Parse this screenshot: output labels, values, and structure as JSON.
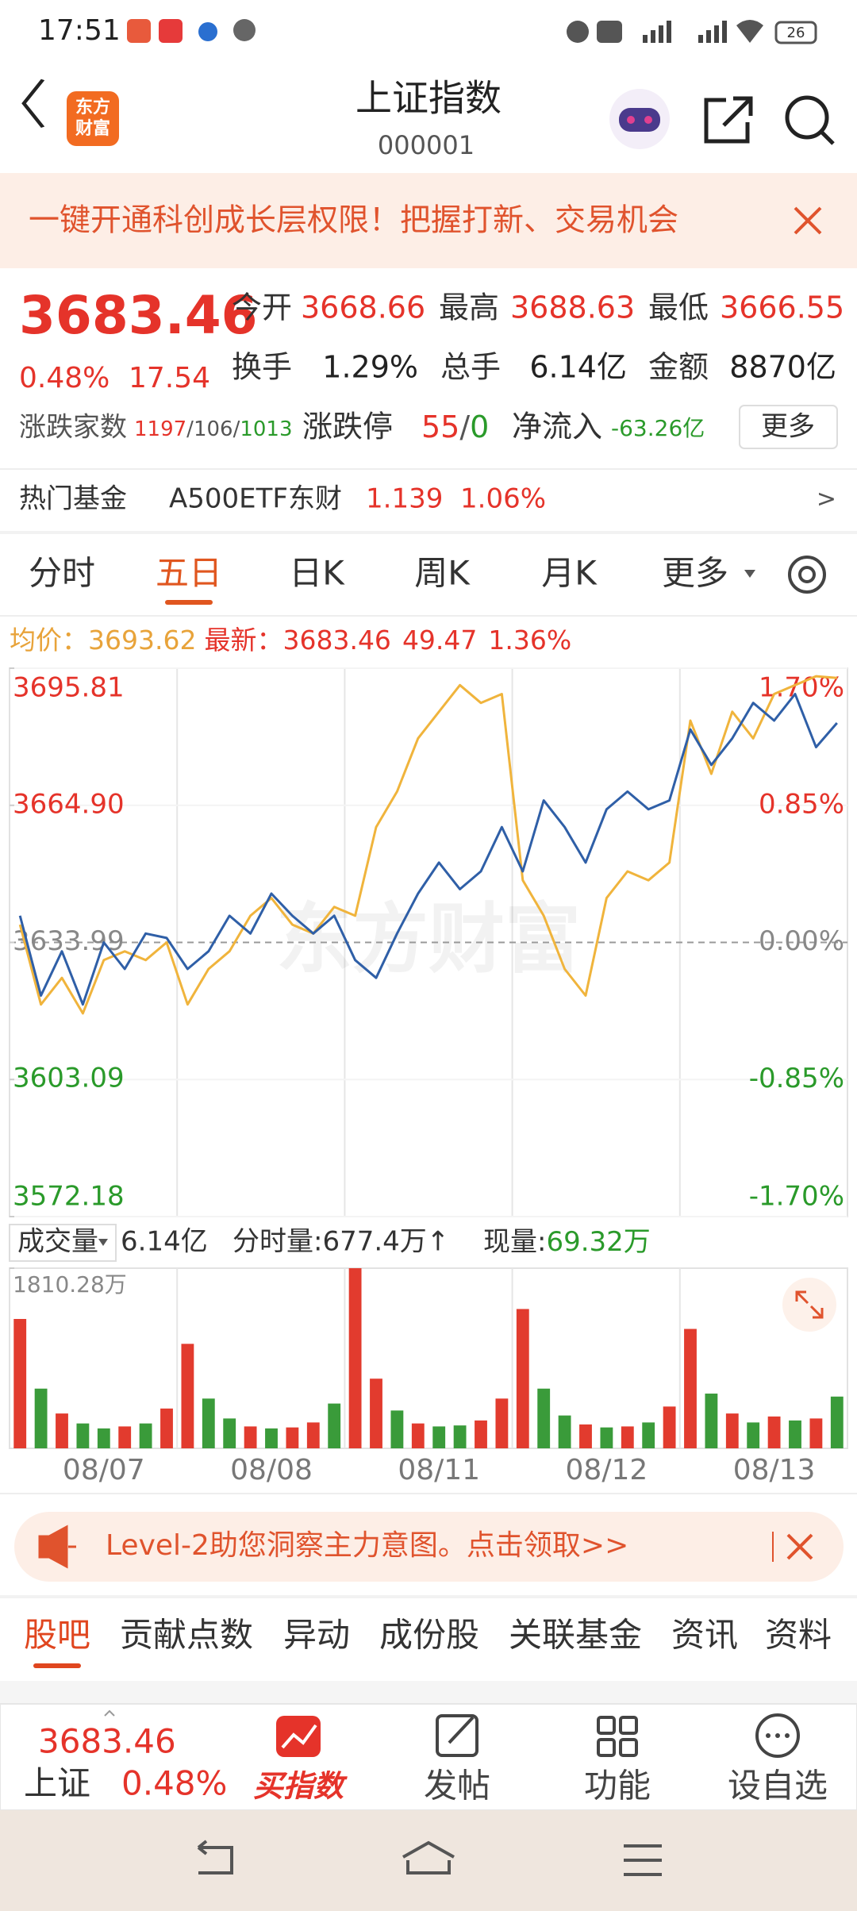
{
  "status_bar": {
    "time": "17:51",
    "battery": "26"
  },
  "header": {
    "logo": [
      "东方",
      "财富"
    ],
    "title": "上证指数",
    "code": "000001"
  },
  "banner": {
    "text": "一键开通科创成长层权限！把握打新、交易机会"
  },
  "quote": {
    "price": "3683.46",
    "change_pct": "0.48%",
    "change": "17.54",
    "fields": [
      {
        "label": "今开",
        "value": "3668.66"
      },
      {
        "label": "最高",
        "value": "3688.63"
      },
      {
        "label": "最低",
        "value": "3666.55"
      },
      {
        "label": "换手",
        "value": "1.29%"
      },
      {
        "label": "总手",
        "value": "6.14亿"
      },
      {
        "label": "金额",
        "value": "8870亿"
      }
    ],
    "breadth": {
      "label": "涨跌家数",
      "up": "1197",
      "flat": "106",
      "down": "1013",
      "separator": "/"
    },
    "limit": {
      "label": "涨跌停",
      "up": "55",
      "down": "0",
      "separator": "/"
    },
    "net_inflow": {
      "label": "净流入",
      "value": "-63.26亿"
    },
    "more_button": "更多"
  },
  "hot_fund": {
    "label": "热门基金",
    "name": "A500ETF东财",
    "price": "1.139",
    "change_pct": "1.06%",
    "arrow": ">"
  },
  "tabs": {
    "items": [
      "分时",
      "五日",
      "日K",
      "周K",
      "月K",
      "更多"
    ],
    "active": 1
  },
  "chart_data": [
    {
      "type": "line",
      "categories": [
        null,
        null,
        null,
        null,
        null,
        null,
        null,
        null,
        null,
        null,
        null,
        null,
        null,
        null,
        null,
        null,
        null,
        null,
        null,
        null,
        null,
        null,
        null,
        null,
        null,
        null,
        null,
        null,
        null,
        null,
        null,
        null,
        null,
        null,
        null,
        null,
        null,
        null,
        null,
        null
      ],
      "series": [
        {
          "name": "均价：",
          "color": "#f0b43c",
          "values": [
            3638,
            3620,
            3626,
            3618,
            3630,
            3632,
            3630,
            3634,
            3620,
            3628,
            3632,
            3640,
            3644,
            3638,
            3636,
            3642,
            3640,
            3660,
            3668,
            3680,
            3686,
            3692,
            3688,
            3690,
            3648,
            3640,
            3628,
            3622,
            3644,
            3650,
            3648,
            3652,
            3684,
            3672,
            3686,
            3680,
            3690,
            3692,
            3694,
            3693.62
          ]
        },
        {
          "name": "最新：",
          "color": "#2f5fa7",
          "values": [
            3640,
            3622,
            3632,
            3620,
            3634,
            3628,
            3636,
            3635,
            3628,
            3632,
            3640,
            3636,
            3645,
            3640,
            3636,
            3640,
            3630,
            3626,
            3636,
            3645,
            3652,
            3646,
            3650,
            3660,
            3650,
            3666,
            3660,
            3652,
            3664,
            3668,
            3664,
            3666,
            3682,
            3674,
            3680,
            3688,
            3684,
            3690,
            3678,
            3683.46
          ]
        }
      ],
      "legend": {
        "avg": 3693.62,
        "latest": 3683.46,
        "change": 49.47,
        "change_pct": "1.36%"
      },
      "ylim": [
        3572.18,
        3695.81
      ],
      "yticks": [
        3695.81,
        {
          "value": 3664.9,
          "label": "3664.90"
        },
        3633.99,
        3603.09,
        3572.18
      ],
      "y2lim": [
        -1.7,
        1.7
      ],
      "y2ticks": [
        {
          "value": 1.7,
          "label": "1.70%"
        },
        {
          "value": 0.85,
          "label": "0.85%"
        },
        {
          "value": 0,
          "label": "0.00%"
        },
        {
          "value": -0.85,
          "label": "-0.85%"
        },
        {
          "value": -1.7,
          "label": "-1.70%"
        }
      ],
      "watermark": "东方财富"
    },
    {
      "type": "bar",
      "categories": [
        null,
        null,
        null,
        null,
        "08/07",
        null,
        null,
        null,
        null,
        null,
        null,
        null,
        "08/08",
        null,
        null,
        null,
        null,
        null,
        null,
        null,
        "08/11",
        null,
        null,
        null,
        null,
        null,
        null,
        null,
        "08/12",
        null,
        null,
        null,
        null,
        null,
        null,
        null,
        "08/13",
        null,
        null,
        null
      ],
      "values": [
        1300,
        600,
        350,
        250,
        200,
        220,
        250,
        400,
        1050,
        500,
        300,
        220,
        200,
        210,
        260,
        450,
        1810,
        700,
        380,
        250,
        220,
        230,
        280,
        500,
        1400,
        600,
        330,
        240,
        210,
        220,
        260,
        420,
        1200,
        550,
        350,
        260,
        320,
        280,
        300,
        520
      ],
      "colors": [
        "#e23b2e",
        "#3a9b3a",
        "#e23b2e",
        "#3a9b3a",
        "#3a9b3a",
        "#e23b2e",
        "#3a9b3a",
        "#e23b2e",
        "#e23b2e",
        "#3a9b3a",
        "#3a9b3a",
        "#e23b2e",
        "#3a9b3a",
        "#e23b2e",
        "#e23b2e",
        "#3a9b3a",
        "#e23b2e",
        "#e23b2e",
        "#3a9b3a",
        "#e23b2e",
        "#3a9b3a",
        "#3a9b3a",
        "#e23b2e",
        "#e23b2e",
        "#e23b2e",
        "#3a9b3a",
        "#3a9b3a",
        "#e23b2e",
        "#3a9b3a",
        "#e23b2e",
        "#3a9b3a",
        "#e23b2e",
        "#e23b2e",
        "#3a9b3a",
        "#e23b2e",
        "#3a9b3a",
        "#e23b2e",
        "#3a9b3a",
        "#e23b2e",
        "#3a9b3a"
      ],
      "ylim": [
        0,
        1810.28
      ],
      "yticks": [
        {
          "value": 1810.28,
          "label": "1810.28万"
        }
      ]
    }
  ],
  "volume_bar": {
    "selector": "成交量",
    "total": "6.14亿",
    "tick_volume": "分时量:677.4万↑",
    "current_label": "现量:",
    "current_value": "69.32万"
  },
  "ad": {
    "text": "Level-2助您洞察主力意图。点击领取>>"
  },
  "bottom_tabs": {
    "items": [
      "股吧",
      "贡献点数",
      "异动",
      "成份股",
      "关联基金",
      "资讯",
      "资料"
    ],
    "active": 0
  },
  "bottom_bar": {
    "price": "3683.46",
    "name": "上证",
    "change_pct": "0.48%",
    "actions": [
      "买指数",
      "发帖",
      "功能",
      "设自选"
    ]
  }
}
